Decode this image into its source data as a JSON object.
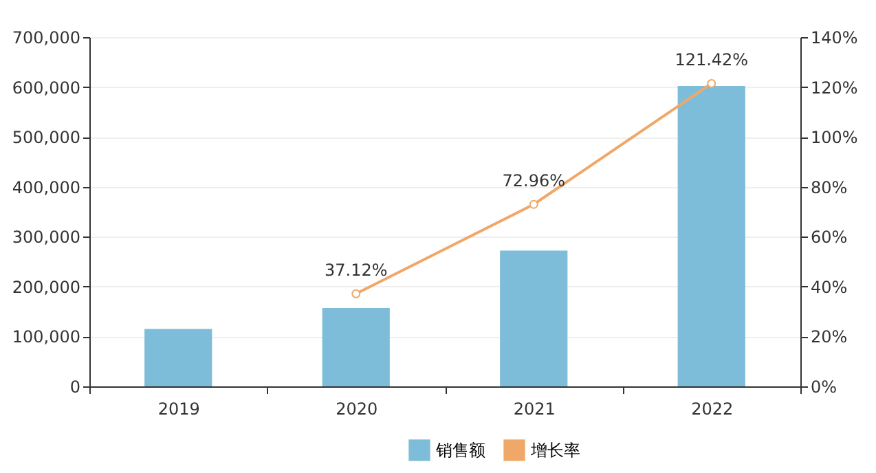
{
  "chart_data": {
    "type": "bar",
    "categories": [
      "2019",
      "2020",
      "2021",
      "2022"
    ],
    "series": [
      {
        "name": "销售额",
        "color": "#7ebdd9",
        "values": [
          115000,
          157000,
          272000,
          602000
        ]
      },
      {
        "name": "增长率",
        "type": "line",
        "axis": "y2",
        "color": "#f0a868",
        "marker": "circle",
        "values": [
          null,
          37.12,
          72.96,
          121.42
        ],
        "value_labels": [
          null,
          "37.12%",
          "72.96%",
          "121.42%"
        ]
      }
    ],
    "ylim": [
      0,
      700000
    ],
    "yticks": [
      {
        "value": 0,
        "label": "0"
      },
      {
        "value": 100000,
        "label": "100,000"
      },
      {
        "value": 200000,
        "label": "200,000"
      },
      {
        "value": 300000,
        "label": "300,000"
      },
      {
        "value": 400000,
        "label": "400,000"
      },
      {
        "value": 500000,
        "label": "500,000"
      },
      {
        "value": 600000,
        "label": "600,000"
      },
      {
        "value": 700000,
        "label": "700,000"
      }
    ],
    "y2lim": [
      0,
      140
    ],
    "y2ticks": [
      {
        "value": 0,
        "label": "0%"
      },
      {
        "value": 20,
        "label": "20%"
      },
      {
        "value": 40,
        "label": "40%"
      },
      {
        "value": 60,
        "label": "60%"
      },
      {
        "value": 80,
        "label": "80%"
      },
      {
        "value": 100,
        "label": "100%"
      },
      {
        "value": 120,
        "label": "120%"
      },
      {
        "value": 140,
        "label": "140%"
      }
    ],
    "grid": "y",
    "legend": "bottom"
  }
}
